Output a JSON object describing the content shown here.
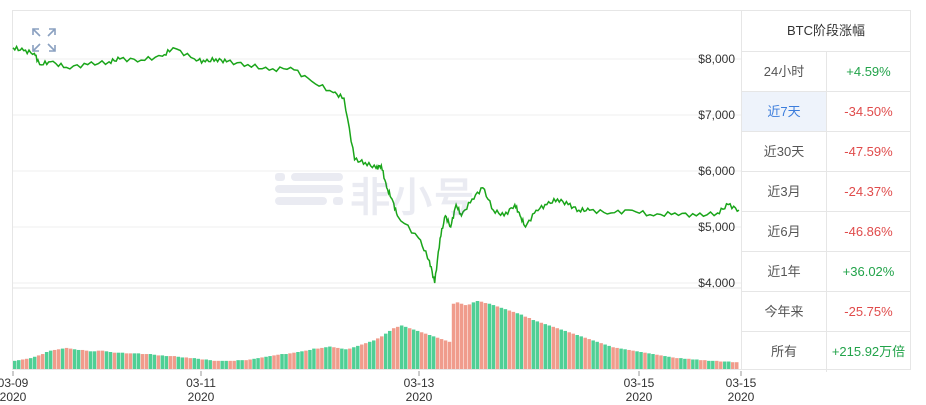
{
  "watermark": "非小号",
  "chart_data": {
    "type": "line",
    "y_ticks": [
      "$8,000",
      "$7,000",
      "$6,000",
      "$5,000",
      "$4,000"
    ],
    "ylim": [
      4000,
      8500
    ],
    "x_ticks": [
      {
        "date": "03-09",
        "year": "2020"
      },
      {
        "date": "03-11",
        "year": "2020"
      },
      {
        "date": "03-13",
        "year": "2020"
      },
      {
        "date": "03-15",
        "year": "2020"
      },
      {
        "date": "03-15",
        "year": "2020"
      }
    ],
    "series": [
      {
        "x_days": [
          0,
          0.1,
          0.2,
          0.25,
          0.35,
          0.5,
          0.7,
          0.9,
          1.0,
          1.2,
          1.4,
          1.5,
          1.7,
          1.8,
          1.9,
          2.0,
          2.2,
          2.4,
          2.6,
          2.8,
          3.0,
          3.1,
          3.2,
          3.3,
          3.4,
          3.45,
          3.5,
          3.55,
          3.6,
          3.8,
          3.9,
          3.95,
          4.0,
          4.05,
          4.1,
          4.15,
          4.2,
          4.3,
          4.4,
          4.5,
          4.6,
          4.7,
          4.75,
          4.8,
          4.9,
          5.0,
          5.1,
          5.2,
          5.3,
          5.4,
          5.6,
          5.8,
          6.0,
          6.2,
          6.4,
          6.6,
          6.7,
          6.8
        ],
        "values": [
          8200,
          8150,
          8100,
          7900,
          7950,
          7850,
          7900,
          7950,
          8000,
          7980,
          8050,
          8200,
          8000,
          7950,
          8000,
          7950,
          7900,
          7800,
          7850,
          7600,
          7400,
          7300,
          6200,
          6150,
          6050,
          6100,
          5700,
          5500,
          5200,
          4800,
          4400,
          4000,
          4800,
          5200,
          5000,
          5400,
          5200,
          5500,
          5700,
          5300,
          5200,
          5400,
          5200,
          5000,
          5300,
          5400,
          5500,
          5400,
          5300,
          5300,
          5250,
          5300,
          5200,
          5250,
          5200,
          5250,
          5400,
          5300
        ]
      }
    ],
    "volume": [
      12,
      13,
      14,
      15,
      16,
      18,
      20,
      22,
      25,
      27,
      28,
      29,
      30,
      31,
      30,
      29,
      28,
      28,
      27,
      26,
      26,
      27,
      27,
      26,
      25,
      24,
      24,
      24,
      23,
      23,
      23,
      23,
      22,
      22,
      22,
      21,
      20,
      20,
      19,
      19,
      19,
      18,
      17,
      17,
      16,
      16,
      15,
      14,
      14,
      13,
      12,
      12,
      12,
      12,
      12,
      12,
      13,
      13,
      13,
      14,
      15,
      16,
      17,
      18,
      19,
      20,
      21,
      22,
      22,
      23,
      24,
      25,
      26,
      27,
      28,
      30,
      30,
      31,
      32,
      33,
      32,
      31,
      30,
      29,
      30,
      32,
      34,
      36,
      38,
      40,
      42,
      45,
      48,
      52,
      56,
      60,
      62,
      64,
      62,
      60,
      58,
      56,
      54,
      52,
      50,
      48,
      46,
      44,
      42,
      40,
      96,
      98,
      96,
      94,
      95,
      98,
      100,
      99,
      97,
      96,
      94,
      92,
      90,
      88,
      86,
      84,
      82,
      80,
      77,
      75,
      72,
      70,
      68,
      66,
      64,
      62,
      60,
      58,
      56,
      54,
      52,
      50,
      48,
      46,
      44,
      42,
      40,
      38,
      36,
      34,
      32,
      31,
      30,
      29,
      28,
      27,
      26,
      25,
      24,
      23,
      22,
      21,
      20,
      19,
      18,
      17,
      16,
      16,
      15,
      15,
      14,
      14,
      13,
      13,
      12,
      12,
      12,
      11,
      11,
      11,
      10,
      10
    ],
    "colors": {
      "line": "#1aa51a",
      "vol_up": "#4fcf95",
      "vol_down": "#f09c8c"
    }
  },
  "table": {
    "title": "BTC阶段涨幅",
    "rows": [
      {
        "label": "24小时",
        "value": "+4.59%",
        "dir": "up",
        "active": false
      },
      {
        "label": "近7天",
        "value": "-34.50%",
        "dir": "down",
        "active": true
      },
      {
        "label": "近30天",
        "value": "-47.59%",
        "dir": "down",
        "active": false
      },
      {
        "label": "近3月",
        "value": "-24.37%",
        "dir": "down",
        "active": false
      },
      {
        "label": "近6月",
        "value": "-46.86%",
        "dir": "down",
        "active": false
      },
      {
        "label": "近1年",
        "value": "+36.02%",
        "dir": "up",
        "active": false
      },
      {
        "label": "今年来",
        "value": "-25.75%",
        "dir": "down",
        "active": false
      },
      {
        "label": "所有",
        "value": "+215.92万倍",
        "dir": "up",
        "active": false
      }
    ]
  }
}
